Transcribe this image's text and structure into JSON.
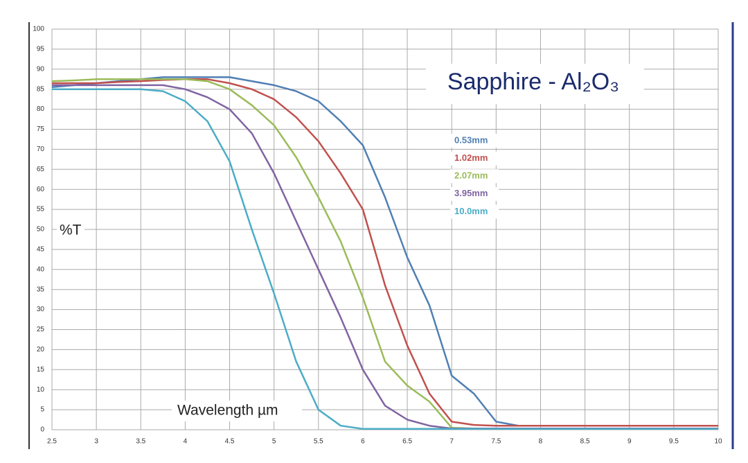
{
  "chart_data": {
    "type": "line",
    "title": "Sapphire - Al₂O₃",
    "x_label": "Wavelength µm",
    "y_label": "%T",
    "x": [
      2.5,
      2.75,
      3,
      3.25,
      3.5,
      3.75,
      4,
      4.25,
      4.5,
      4.75,
      5,
      5.25,
      5.5,
      5.75,
      6,
      6.25,
      6.5,
      6.75,
      7,
      7.25,
      7.5,
      7.75,
      8,
      8.5,
      9,
      9.5,
      10
    ],
    "series": [
      {
        "name": "0.53mm",
        "color": "#4f7fb3",
        "values": [
          85.5,
          86,
          86.5,
          87,
          87.5,
          88,
          88,
          88,
          88,
          87,
          86,
          84.5,
          82,
          77,
          71,
          58,
          43,
          31,
          13.5,
          9,
          2,
          1,
          1,
          1,
          1,
          1,
          1
        ]
      },
      {
        "name": "1.02mm",
        "color": "#c0504d",
        "values": [
          86.5,
          86.5,
          86.5,
          86.8,
          87,
          87.3,
          87.5,
          87.5,
          86.5,
          85,
          82.5,
          78,
          72,
          64,
          55,
          36,
          21,
          9,
          2,
          1.2,
          1,
          1,
          1,
          1,
          1,
          1,
          1
        ]
      },
      {
        "name": "2.07mm",
        "color": "#9bbb59",
        "values": [
          87,
          87.2,
          87.5,
          87.5,
          87.5,
          87.5,
          87.5,
          87,
          85,
          81,
          76,
          68,
          58,
          47,
          33,
          17,
          11,
          7,
          0.5,
          0.3,
          0.3,
          0.3,
          0.3,
          0.3,
          0.3,
          0.3,
          0.3
        ]
      },
      {
        "name": "3.95mm",
        "color": "#8064a2",
        "values": [
          86,
          86,
          86,
          86,
          86,
          86,
          85,
          83,
          80,
          74,
          64,
          52,
          40,
          28,
          15,
          6,
          2.5,
          1,
          0.3,
          0.3,
          0.3,
          0.3,
          0.3,
          0.3,
          0.3,
          0.3,
          0.3
        ]
      },
      {
        "name": "10.0mm",
        "color": "#4bacc6",
        "values": [
          85,
          85,
          85,
          85,
          85,
          84.5,
          82,
          77,
          67,
          50,
          34,
          17,
          5,
          1,
          0.2,
          0.2,
          0.2,
          0.2,
          0.2,
          0.2,
          0.2,
          0.2,
          0.2,
          0.2,
          0.2,
          0.2,
          0.2
        ]
      }
    ],
    "xlim": [
      2.5,
      10
    ],
    "ylim": [
      0,
      100
    ],
    "xticks": [
      2.5,
      3,
      3.5,
      4,
      4.5,
      5,
      5.5,
      6,
      6.5,
      7,
      7.5,
      8,
      8.5,
      9,
      9.5,
      10
    ],
    "yticks": [
      0,
      5,
      10,
      15,
      20,
      25,
      30,
      35,
      40,
      45,
      50,
      55,
      60,
      65,
      70,
      75,
      80,
      85,
      90,
      95,
      100
    ],
    "grid": true
  }
}
